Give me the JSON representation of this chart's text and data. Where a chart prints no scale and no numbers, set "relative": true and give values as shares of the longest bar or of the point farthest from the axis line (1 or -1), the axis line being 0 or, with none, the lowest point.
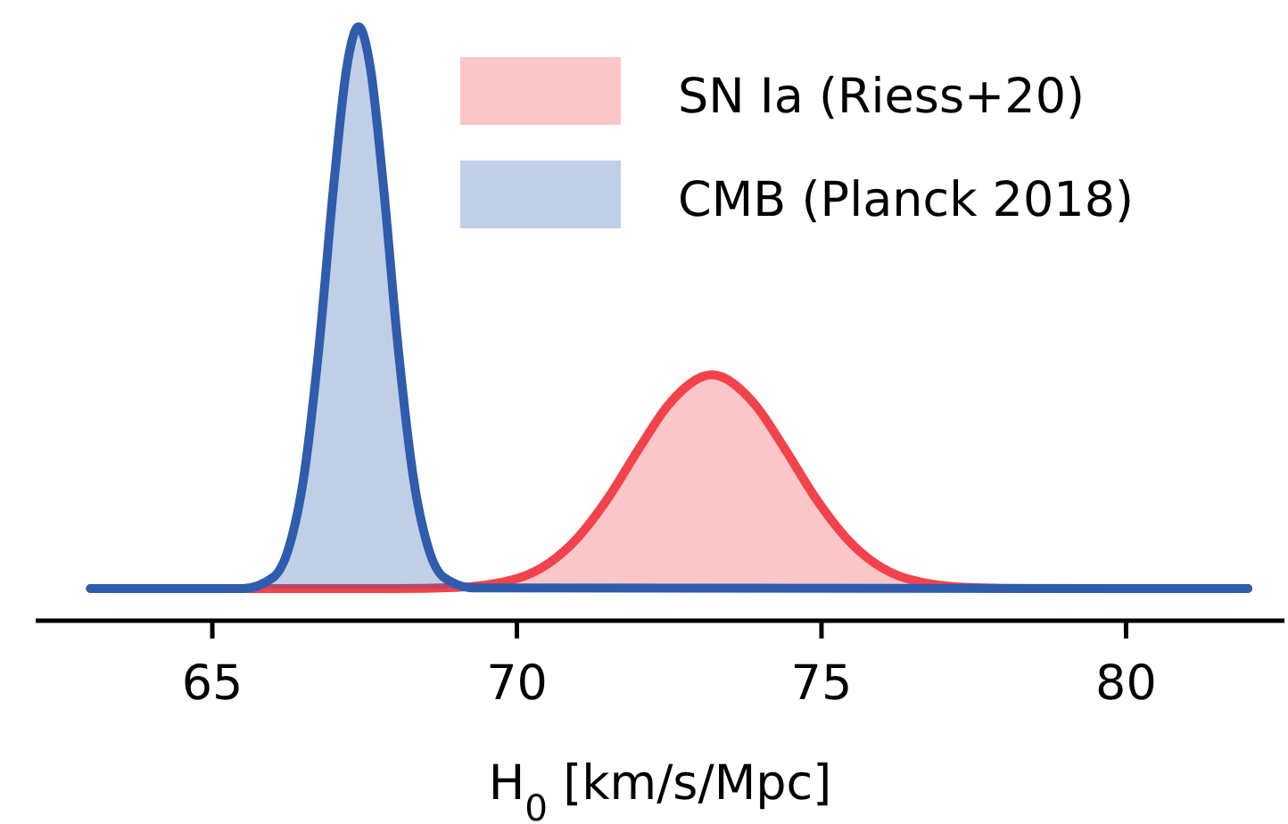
{
  "chart_data": {
    "type": "area",
    "relative": true,
    "xlabel": "H$_{0}$ [km/s/Mpc]",
    "xlim": [
      62.1,
      82.6
    ],
    "xticks": [
      65,
      70,
      75,
      80
    ],
    "legend": "top right",
    "grid": false,
    "series": [
      {
        "name": "SN Ia (Riess+20)",
        "color": "#f2424a",
        "x": [
          63,
          68,
          69,
          70,
          71,
          71.5,
          72,
          72.5,
          73.2,
          73.9,
          74.4,
          74.9,
          75.4,
          76.4,
          77.4,
          78.4,
          82
        ],
        "values": [
          0.054,
          0.054,
          0.056,
          0.071,
          0.14,
          0.207,
          0.289,
          0.365,
          0.414,
          0.365,
          0.289,
          0.207,
          0.14,
          0.071,
          0.056,
          0.054,
          0.054
        ]
      },
      {
        "name": "CMB (Planck 2018)",
        "color": "#2f5cac",
        "x": [
          63,
          65.5,
          66,
          66.25,
          66.5,
          66.75,
          67,
          67.2,
          67.4,
          67.6,
          67.8,
          68.05,
          68.3,
          68.55,
          68.8,
          69.3,
          82
        ],
        "values": [
          0.054,
          0.054,
          0.073,
          0.121,
          0.241,
          0.46,
          0.741,
          0.927,
          1,
          0.927,
          0.741,
          0.46,
          0.241,
          0.121,
          0.073,
          0.055,
          0.054
        ]
      }
    ]
  }
}
